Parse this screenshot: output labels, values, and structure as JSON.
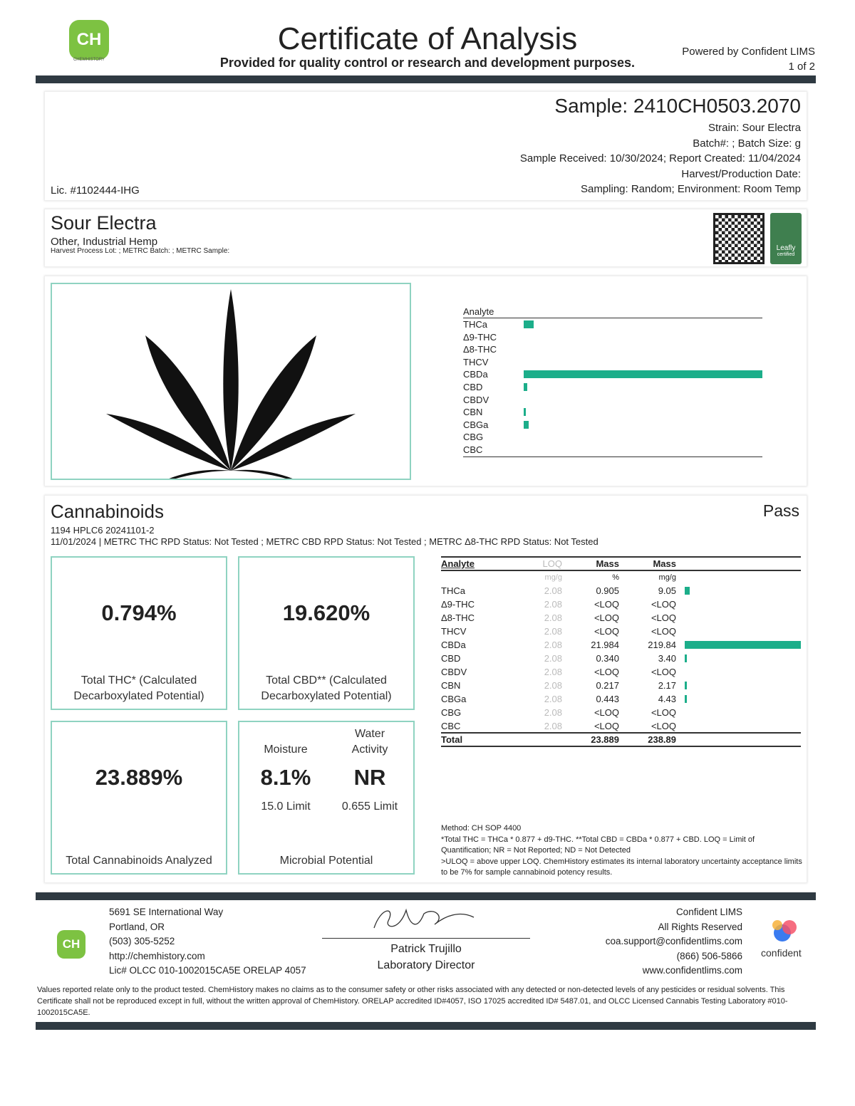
{
  "header": {
    "logo_text": "CH",
    "logo_sub": "CHEMHISTORY",
    "title": "Certificate of Analysis",
    "subtitle": "Provided for quality control or research and development purposes.",
    "powered_by": "Powered by Confident LIMS",
    "page": "1 of 2"
  },
  "sample": {
    "id": "Sample: 2410CH0503.2070",
    "strain": "Strain: Sour Electra",
    "batch": "Batch#: ; Batch Size: g",
    "dates": "Sample Received: 10/30/2024; Report Created: 11/04/2024",
    "harvest": "Harvest/Production Date:",
    "sampling": "Sampling: Random; Environment: Room Temp",
    "license": "Lic. #1102444-IHG"
  },
  "product": {
    "name": "Sour Electra",
    "type": "Other, Industrial Hemp",
    "metrc": "Harvest Process Lot: ; METRC Batch: ; METRC Sample:",
    "leafly": "Leafly",
    "leafly_sub": "certified"
  },
  "overview_chart": {
    "header": "Analyte"
  },
  "cannabinoids": {
    "title": "Cannabinoids",
    "status": "Pass",
    "method_line": "1194 HPLC6 20241101-2",
    "rpd_line": "11/01/2024 | METRC THC RPD Status: Not Tested ; METRC CBD RPD Status: Not Tested ; METRC Δ8-THC RPD Status: Not Tested",
    "total_thc": {
      "value": "0.794%",
      "label": "Total THC* (Calculated Decarboxylated Potential)"
    },
    "total_cbd": {
      "value": "19.620%",
      "label": "Total CBD** (Calculated Decarboxylated Potential)"
    },
    "total_cann": {
      "value": "23.889%",
      "label": "Total Cannabinoids Analyzed"
    },
    "moisture": {
      "label": "Moisture",
      "value": "8.1%",
      "limit": "15.0 Limit"
    },
    "water": {
      "label": "Water Activity",
      "value": "NR",
      "limit": "0.655 Limit"
    },
    "microbial": "Microbial Potential",
    "table": {
      "headers": [
        "Analyte",
        "LOQ",
        "Mass",
        "Mass"
      ],
      "units": [
        "",
        "mg/g",
        "%",
        "mg/g"
      ],
      "rows": [
        [
          "THCa",
          "2.08",
          "0.905",
          "9.05"
        ],
        [
          "Δ9-THC",
          "2.08",
          "<LOQ",
          "<LOQ"
        ],
        [
          "Δ8-THC",
          "2.08",
          "<LOQ",
          "<LOQ"
        ],
        [
          "THCV",
          "2.08",
          "<LOQ",
          "<LOQ"
        ],
        [
          "CBDa",
          "2.08",
          "21.984",
          "219.84"
        ],
        [
          "CBD",
          "2.08",
          "0.340",
          "3.40"
        ],
        [
          "CBDV",
          "2.08",
          "<LOQ",
          "<LOQ"
        ],
        [
          "CBN",
          "2.08",
          "0.217",
          "2.17"
        ],
        [
          "CBGa",
          "2.08",
          "0.443",
          "4.43"
        ],
        [
          "CBG",
          "2.08",
          "<LOQ",
          "<LOQ"
        ],
        [
          "CBC",
          "2.08",
          "<LOQ",
          "<LOQ"
        ]
      ],
      "total": [
        "Total",
        "",
        "23.889",
        "238.89"
      ]
    },
    "notes": [
      "Method: CH SOP 4400",
      "*Total THC = THCa * 0.877 + d9-THC. **Total CBD = CBDa * 0.877 + CBD. LOQ = Limit of Quantification; NR = Not Reported; ND = Not Detected",
      ">ULOQ = above upper LOQ. ChemHistory estimates its internal laboratory uncertainty acceptance limits to be 7% for sample cannabinoid potency results."
    ]
  },
  "chart_data": {
    "type": "bar",
    "orientation": "horizontal",
    "categories": [
      "THCa",
      "Δ9-THC",
      "Δ8-THC",
      "THCV",
      "CBDa",
      "CBD",
      "CBDV",
      "CBN",
      "CBGa",
      "CBG",
      "CBC"
    ],
    "values": [
      9.05,
      0,
      0,
      0,
      219.84,
      3.4,
      0,
      2.17,
      4.43,
      0,
      0
    ],
    "unit": "mg/g",
    "color": "#1cae8a"
  },
  "footer": {
    "address": [
      "5691 SE International Way",
      "Portland, OR",
      "(503) 305-5252",
      "http://chemhistory.com",
      "Lic# OLCC 010-1002015CA5E ORELAP 4057"
    ],
    "signer": "Patrick Trujillo",
    "signer_title": "Laboratory Director",
    "confident": [
      "Confident LIMS",
      "All Rights Reserved",
      "coa.support@confidentlims.com",
      "(866) 506-5866",
      "www.confidentlims.com"
    ],
    "confident_logo": "confident",
    "disclaimer": "Values reported relate only to the product tested. ChemHistory makes no claims as to the consumer safety or other risks associated with any detected or non-detected levels of any pesticides or residual solvents. This Certificate shall not be reproduced except in full, without the written approval of ChemHistory. ORELAP accredited ID#4057, ISO 17025 accredited ID# 5487.01, and OLCC Licensed Cannabis Testing Laboratory #010-1002015CA5E."
  }
}
